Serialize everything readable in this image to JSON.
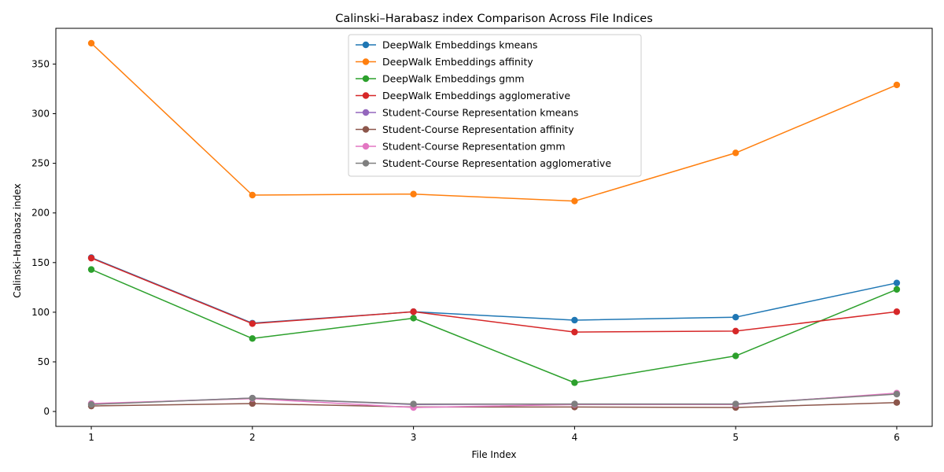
{
  "chart_data": {
    "type": "line",
    "title": "Calinski–Harabasz index Comparison Across File Indices",
    "xlabel": "File Index",
    "ylabel": "Calinski–Harabasz index",
    "x": [
      1,
      2,
      3,
      4,
      5,
      6
    ],
    "x_ticks": [
      "1",
      "2",
      "3",
      "4",
      "5",
      "6"
    ],
    "y_ticks": [
      0,
      50,
      100,
      150,
      200,
      250,
      300,
      350
    ],
    "ylim": [
      -15,
      386
    ],
    "xlim": [
      0.78,
      6.22
    ],
    "grid": false,
    "legend_placement": "top-center",
    "markers": "circle",
    "series": [
      {
        "name": "DeepWalk Embeddings kmeans",
        "color": "#1f77b4",
        "values": [
          155,
          89,
          100.5,
          92,
          95,
          129.5
        ]
      },
      {
        "name": "DeepWalk Embeddings affinity",
        "color": "#ff7f0e",
        "values": [
          371,
          218,
          219,
          212,
          260.5,
          329
        ]
      },
      {
        "name": "DeepWalk Embeddings gmm",
        "color": "#2ca02c",
        "values": [
          143,
          73.5,
          94,
          29,
          56,
          123
        ]
      },
      {
        "name": "DeepWalk Embeddings agglomerative",
        "color": "#d62728",
        "values": [
          154.5,
          88.5,
          100.5,
          80,
          81,
          100.5
        ]
      },
      {
        "name": "Student-Course Representation kmeans",
        "color": "#9467bd",
        "values": [
          7.5,
          13.5,
          7,
          7.5,
          7.5,
          18
        ]
      },
      {
        "name": "Student-Course Representation affinity",
        "color": "#8c564b",
        "values": [
          5.5,
          8,
          4.5,
          4.5,
          4,
          9
        ]
      },
      {
        "name": "Student-Course Representation gmm",
        "color": "#e377c2",
        "values": [
          8,
          13,
          4,
          7,
          7,
          18.5
        ]
      },
      {
        "name": "Student-Course Representation agglomerative",
        "color": "#7f7f7f",
        "values": [
          7,
          13.5,
          7.5,
          7.5,
          7.5,
          17.5
        ]
      }
    ]
  }
}
